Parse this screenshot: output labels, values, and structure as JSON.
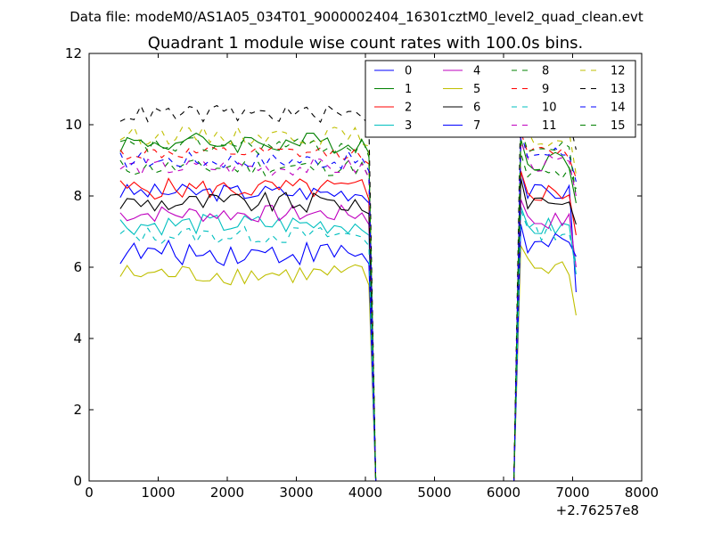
{
  "chart_data": {
    "type": "line",
    "suptitle": "Data file: modeM0/AS1A05_034T01_9000002404_16301cztM0_level2_quad_clean.evt",
    "title": "Quadrant 1 module wise count rates with 100.0s bins.",
    "xlabel": "",
    "ylabel": "",
    "x_offset_label": "+2.76257e8",
    "xlim": [
      0,
      8000
    ],
    "ylim": [
      0,
      12
    ],
    "xticks": [
      "0",
      "1000",
      "2000",
      "3000",
      "4000",
      "5000",
      "6000",
      "7000",
      "8000"
    ],
    "yticks": [
      "0",
      "2",
      "4",
      "6",
      "8",
      "10",
      "12"
    ],
    "grid": false,
    "legend_position": "top-right",
    "legend_columns": 4,
    "gap": {
      "start": 4050,
      "end": 6250
    },
    "series": [
      {
        "name": "0",
        "color": "#0000ff",
        "dash": "solid",
        "base1": 8.1,
        "base2": 8.1,
        "amp": 0.25,
        "end": 5.3
      },
      {
        "name": "1",
        "color": "#008000",
        "dash": "solid",
        "base1": 9.5,
        "base2": 9.0,
        "amp": 0.3,
        "end": 7.8
      },
      {
        "name": "2",
        "color": "#ff0000",
        "dash": "solid",
        "base1": 8.2,
        "base2": 8.1,
        "amp": 0.3,
        "end": 6.9
      },
      {
        "name": "3",
        "color": "#00bfbf",
        "dash": "solid",
        "base1": 7.2,
        "base2": 7.1,
        "amp": 0.3,
        "end": 5.8
      },
      {
        "name": "4",
        "color": "#bf00bf",
        "dash": "solid",
        "base1": 7.5,
        "base2": 7.3,
        "amp": 0.25,
        "end": 6.0
      },
      {
        "name": "5",
        "color": "#bfbf00",
        "dash": "solid",
        "base1": 5.8,
        "base2": 6.0,
        "amp": 0.3,
        "end": 4.65
      },
      {
        "name": "6",
        "color": "#000000",
        "dash": "solid",
        "base1": 7.8,
        "base2": 7.9,
        "amp": 0.3,
        "end": 7.2
      },
      {
        "name": "7",
        "color": "#0000ff",
        "dash": "solid",
        "base1": 6.4,
        "base2": 6.6,
        "amp": 0.35,
        "end": 6.3
      },
      {
        "name": "8",
        "color": "#008000",
        "dash": "dashed",
        "base1": 8.8,
        "base2": 8.6,
        "amp": 0.25,
        "end": 8.2
      },
      {
        "name": "9",
        "color": "#ff0000",
        "dash": "dashed",
        "base1": 9.2,
        "base2": 9.2,
        "amp": 0.2,
        "end": 8.5
      },
      {
        "name": "10",
        "color": "#00bfbf",
        "dash": "dashed",
        "base1": 6.9,
        "base2": 7.0,
        "amp": 0.25,
        "end": 6.1
      },
      {
        "name": "11",
        "color": "#bf00bf",
        "dash": "dashed",
        "base1": 8.8,
        "base2": 8.9,
        "amp": 0.25,
        "end": 8.0
      },
      {
        "name": "12",
        "color": "#bfbf00",
        "dash": "dashed",
        "base1": 9.7,
        "base2": 9.6,
        "amp": 0.25,
        "end": 8.6
      },
      {
        "name": "13",
        "color": "#000000",
        "dash": "dashed",
        "base1": 10.3,
        "base2": 10.3,
        "amp": 0.25,
        "end": 9.3
      },
      {
        "name": "14",
        "color": "#0000ff",
        "dash": "dashed",
        "base1": 9.0,
        "base2": 9.2,
        "amp": 0.25,
        "end": 8.4
      },
      {
        "name": "15",
        "color": "#008000",
        "dash": "dashed",
        "base1": 9.4,
        "base2": 9.3,
        "amp": 0.25,
        "end": 8.0
      }
    ],
    "x_samples": {
      "before_gap": [
        450,
        550,
        650,
        750,
        850,
        950,
        1050,
        1150,
        1250,
        1350,
        1450,
        1550,
        1650,
        1750,
        1850,
        1950,
        2050,
        2150,
        2250,
        2350,
        2450,
        2550,
        2650,
        2750,
        2850,
        2950,
        3050,
        3150,
        3250,
        3350,
        3450,
        3550,
        3650,
        3750,
        3850,
        3950,
        4050
      ],
      "gap_floor": [
        4150,
        6150
      ],
      "after_gap": [
        6250,
        6350,
        6450,
        6550,
        6650,
        6750,
        6850,
        6950,
        7050
      ]
    }
  }
}
